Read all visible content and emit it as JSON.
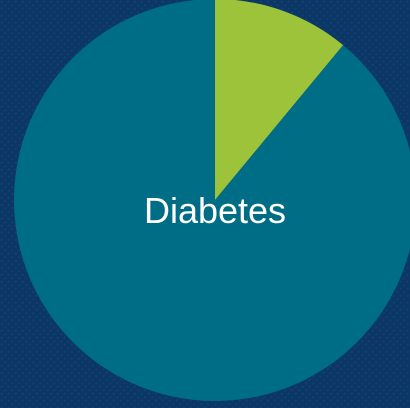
{
  "chart_data": {
    "type": "pie",
    "center_label": "Diabetes",
    "slices": [
      {
        "value": 11,
        "color": "#9dc33b"
      },
      {
        "value": 89,
        "color": "#006d86"
      }
    ],
    "start_angle_deg": 0,
    "direction": "clockwise"
  },
  "colors": {
    "background": "#0b3766",
    "label": "#ffffff"
  }
}
